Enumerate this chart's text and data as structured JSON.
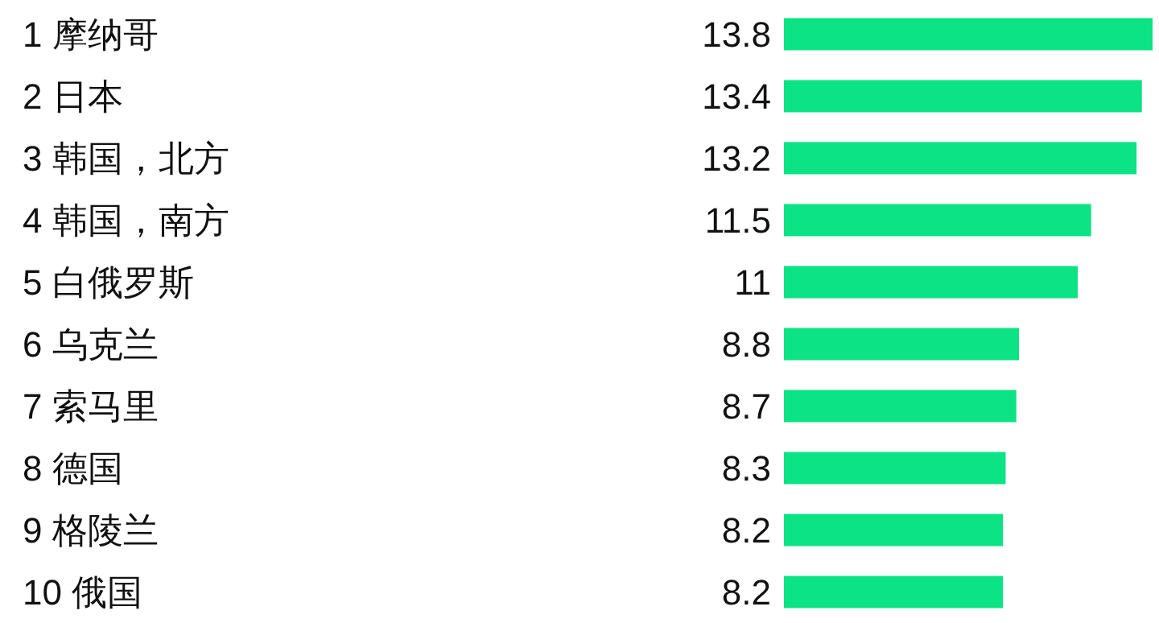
{
  "chart_data": {
    "type": "bar",
    "orientation": "horizontal",
    "data_labels": true,
    "color": "#0be384",
    "categories": [
      "1 摩纳哥",
      "2 日本",
      "3 韩国，北方",
      "4 韩国，南方",
      "5 白俄罗斯",
      "6 乌克兰",
      "7 索马里",
      "8 德国",
      "9 格陵兰",
      "10 俄国"
    ],
    "values": [
      13.8,
      13.4,
      13.2,
      11.5,
      11,
      8.8,
      8.7,
      8.3,
      8.2,
      8.2
    ]
  }
}
